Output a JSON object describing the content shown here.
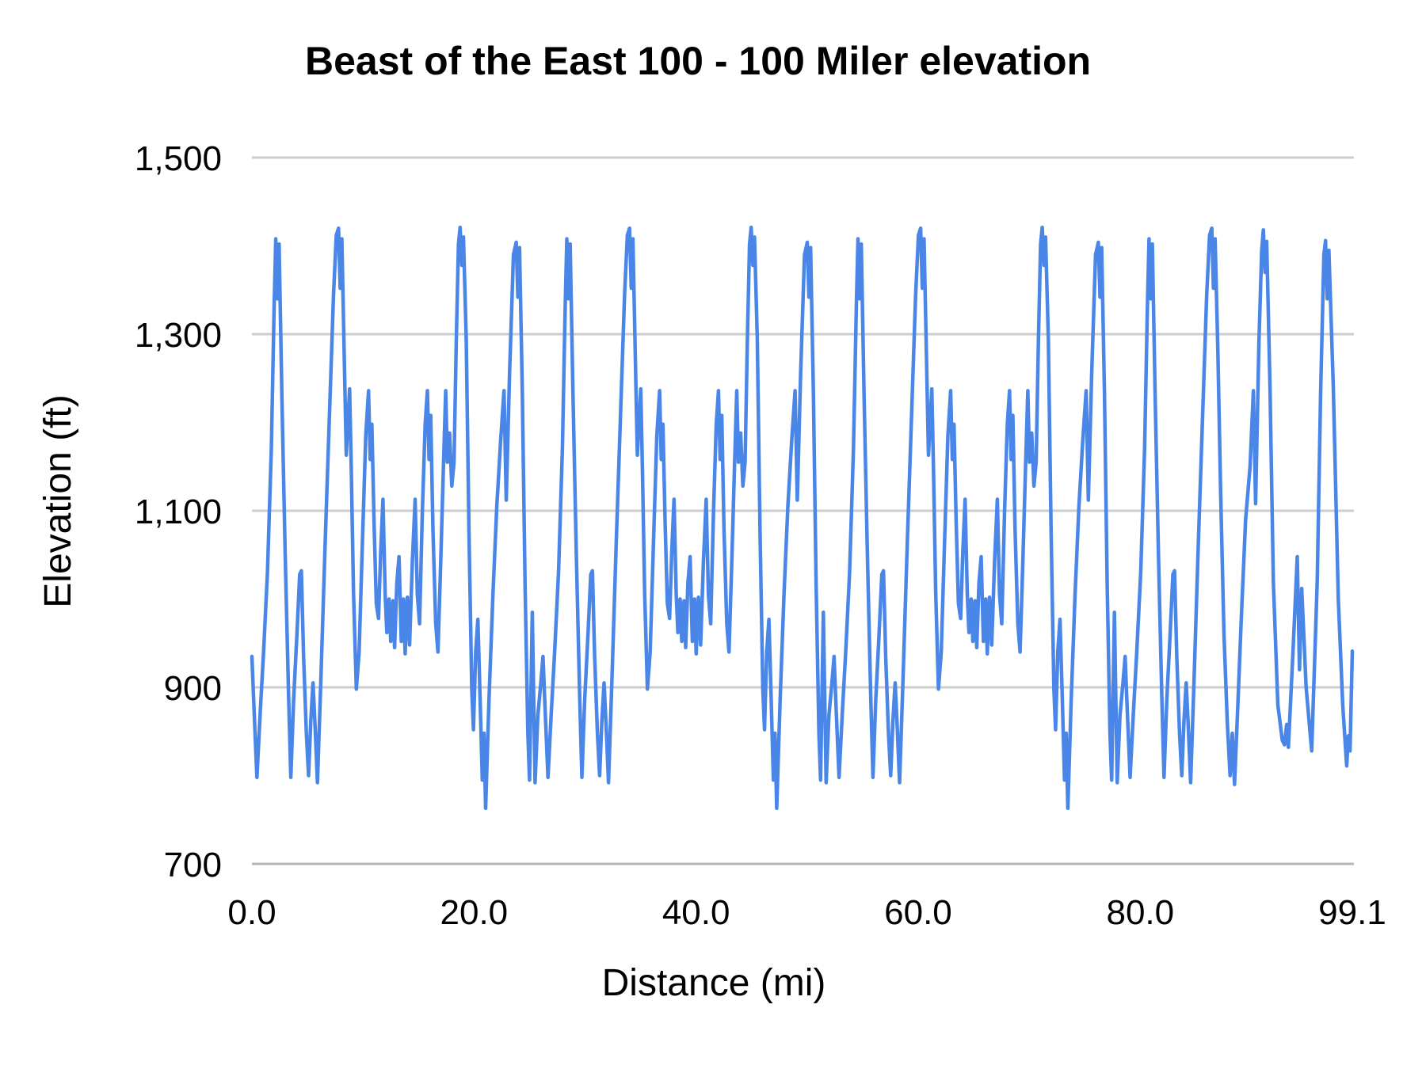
{
  "chart_data": {
    "type": "line",
    "title": "Beast of the East 100 - 100 Miler elevation",
    "xlabel": "Distance (mi)",
    "ylabel": "Elevation (ft)",
    "xlim": [
      0,
      99.1
    ],
    "ylim": [
      700,
      1500
    ],
    "grid": "horizontal",
    "legend": "none",
    "series_name": "Elevation (ft)",
    "series_color": "#4a86e8",
    "gridline_color": "#cccccc",
    "baseline_color": "#b7b7b7",
    "background_color": "#ffffff",
    "x_ticks": [
      {
        "value": 0,
        "label": "0.0"
      },
      {
        "value": 20,
        "label": "20.0"
      },
      {
        "value": 40,
        "label": "40.0"
      },
      {
        "value": 60,
        "label": "60.0"
      },
      {
        "value": 80,
        "label": "80.0"
      },
      {
        "value": 99.1,
        "label": "99.1"
      }
    ],
    "y_ticks": [
      {
        "value": 700,
        "label": "700"
      },
      {
        "value": 900,
        "label": "900"
      },
      {
        "value": 1100,
        "label": "1,100"
      },
      {
        "value": 1300,
        "label": "1,300"
      },
      {
        "value": 1500,
        "label": "1,500"
      }
    ],
    "course_structure": "repeating loop course; elevation profile of 3 full loops followed by a shortened final loop, finish at mile 99.1",
    "loop_length_mi": 26.2133,
    "loop_starts_mi": [
      0,
      26.2133,
      52.4267
    ],
    "loop_profile_points_mi_ft": [
      [
        0.0,
        935
      ],
      [
        0.2,
        872
      ],
      [
        0.45,
        798
      ],
      [
        0.75,
        872
      ],
      [
        1.05,
        940
      ],
      [
        1.4,
        1030
      ],
      [
        1.75,
        1170
      ],
      [
        2.0,
        1330
      ],
      [
        2.15,
        1408
      ],
      [
        2.3,
        1340
      ],
      [
        2.45,
        1402
      ],
      [
        2.7,
        1230
      ],
      [
        3.0,
        1050
      ],
      [
        3.3,
        890
      ],
      [
        3.5,
        798
      ],
      [
        3.75,
        885
      ],
      [
        4.05,
        960
      ],
      [
        4.3,
        1028
      ],
      [
        4.45,
        1032
      ],
      [
        4.65,
        935
      ],
      [
        4.9,
        848
      ],
      [
        5.1,
        800
      ],
      [
        5.3,
        862
      ],
      [
        5.5,
        905
      ],
      [
        5.7,
        852
      ],
      [
        5.9,
        792
      ],
      [
        6.2,
        905
      ],
      [
        6.6,
        1065
      ],
      [
        7.0,
        1215
      ],
      [
        7.35,
        1345
      ],
      [
        7.6,
        1412
      ],
      [
        7.8,
        1420
      ],
      [
        7.95,
        1352
      ],
      [
        8.1,
        1408
      ],
      [
        8.3,
        1285
      ],
      [
        8.5,
        1163
      ],
      [
        8.65,
        1200
      ],
      [
        8.8,
        1238
      ],
      [
        8.95,
        1148
      ],
      [
        9.15,
        1008
      ],
      [
        9.4,
        898
      ],
      [
        9.65,
        940
      ],
      [
        9.95,
        1065
      ],
      [
        10.25,
        1185
      ],
      [
        10.5,
        1236
      ],
      [
        10.65,
        1158
      ],
      [
        10.8,
        1198
      ],
      [
        11.0,
        1085
      ],
      [
        11.2,
        995
      ],
      [
        11.4,
        978
      ],
      [
        11.6,
        1055
      ],
      [
        11.8,
        1113
      ],
      [
        12.0,
        1005
      ],
      [
        12.15,
        962
      ],
      [
        12.35,
        1000
      ],
      [
        12.5,
        952
      ],
      [
        12.7,
        998
      ],
      [
        12.85,
        945
      ],
      [
        13.05,
        1018
      ],
      [
        13.25,
        1048
      ],
      [
        13.45,
        952
      ],
      [
        13.65,
        1000
      ],
      [
        13.8,
        938
      ],
      [
        14.0,
        1002
      ],
      [
        14.2,
        948
      ],
      [
        14.45,
        1042
      ],
      [
        14.7,
        1113
      ],
      [
        14.9,
        1005
      ],
      [
        15.1,
        972
      ],
      [
        15.35,
        1098
      ],
      [
        15.6,
        1198
      ],
      [
        15.8,
        1236
      ],
      [
        15.95,
        1158
      ],
      [
        16.1,
        1208
      ],
      [
        16.3,
        1078
      ],
      [
        16.55,
        972
      ],
      [
        16.75,
        940
      ],
      [
        17.0,
        1042
      ],
      [
        17.25,
        1152
      ],
      [
        17.45,
        1236
      ],
      [
        17.6,
        1155
      ],
      [
        17.8,
        1188
      ],
      [
        18.0,
        1128
      ],
      [
        18.2,
        1155
      ],
      [
        18.4,
        1290
      ],
      [
        18.6,
        1402
      ],
      [
        18.75,
        1421
      ],
      [
        18.9,
        1378
      ],
      [
        19.05,
        1410
      ],
      [
        19.3,
        1295
      ],
      [
        19.55,
        1075
      ],
      [
        19.8,
        898
      ],
      [
        19.95,
        852
      ],
      [
        20.15,
        940
      ],
      [
        20.35,
        977
      ],
      [
        20.55,
        888
      ],
      [
        20.75,
        795
      ],
      [
        20.9,
        848
      ],
      [
        21.05,
        763
      ],
      [
        21.35,
        885
      ],
      [
        21.7,
        1005
      ],
      [
        22.05,
        1105
      ],
      [
        22.4,
        1180
      ],
      [
        22.7,
        1236
      ],
      [
        22.9,
        1112
      ],
      [
        23.2,
        1255
      ],
      [
        23.55,
        1390
      ],
      [
        23.8,
        1404
      ],
      [
        23.95,
        1342
      ],
      [
        24.1,
        1398
      ],
      [
        24.35,
        1235
      ],
      [
        24.6,
        1015
      ],
      [
        24.85,
        848
      ],
      [
        25.0,
        795
      ],
      [
        25.25,
        985
      ],
      [
        25.5,
        792
      ],
      [
        25.75,
        868
      ],
      [
        26.0,
        902
      ]
    ],
    "final_segment_points_mi_ft": [
      [
        78.64,
        935
      ],
      [
        78.84,
        872
      ],
      [
        79.09,
        798
      ],
      [
        79.39,
        872
      ],
      [
        79.69,
        940
      ],
      [
        80.04,
        1030
      ],
      [
        80.39,
        1170
      ],
      [
        80.64,
        1330
      ],
      [
        80.79,
        1408
      ],
      [
        80.94,
        1340
      ],
      [
        81.09,
        1402
      ],
      [
        81.34,
        1230
      ],
      [
        81.64,
        1050
      ],
      [
        81.94,
        890
      ],
      [
        82.14,
        798
      ],
      [
        82.39,
        885
      ],
      [
        82.69,
        960
      ],
      [
        82.94,
        1028
      ],
      [
        83.09,
        1032
      ],
      [
        83.29,
        935
      ],
      [
        83.54,
        848
      ],
      [
        83.74,
        800
      ],
      [
        83.94,
        862
      ],
      [
        84.14,
        905
      ],
      [
        84.34,
        852
      ],
      [
        84.54,
        792
      ],
      [
        84.84,
        905
      ],
      [
        85.24,
        1065
      ],
      [
        85.64,
        1215
      ],
      [
        85.99,
        1345
      ],
      [
        86.24,
        1412
      ],
      [
        86.44,
        1420
      ],
      [
        86.59,
        1352
      ],
      [
        86.74,
        1408
      ],
      [
        86.99,
        1280
      ],
      [
        87.24,
        1120
      ],
      [
        87.54,
        960
      ],
      [
        87.84,
        860
      ],
      [
        88.09,
        800
      ],
      [
        88.29,
        848
      ],
      [
        88.49,
        790
      ],
      [
        88.79,
        880
      ],
      [
        89.09,
        975
      ],
      [
        89.49,
        1090
      ],
      [
        89.89,
        1150
      ],
      [
        90.19,
        1236
      ],
      [
        90.39,
        1108
      ],
      [
        90.69,
        1290
      ],
      [
        90.94,
        1395
      ],
      [
        91.09,
        1418
      ],
      [
        91.24,
        1370
      ],
      [
        91.39,
        1405
      ],
      [
        91.69,
        1240
      ],
      [
        91.99,
        1020
      ],
      [
        92.39,
        880
      ],
      [
        92.79,
        840
      ],
      [
        92.99,
        835
      ],
      [
        93.19,
        858
      ],
      [
        93.34,
        832
      ],
      [
        93.79,
        950
      ],
      [
        94.14,
        1048
      ],
      [
        94.34,
        920
      ],
      [
        94.54,
        1012
      ],
      [
        94.94,
        900
      ],
      [
        95.44,
        828
      ],
      [
        95.94,
        1020
      ],
      [
        96.24,
        1230
      ],
      [
        96.54,
        1390
      ],
      [
        96.69,
        1406
      ],
      [
        96.84,
        1340
      ],
      [
        96.99,
        1395
      ],
      [
        97.39,
        1240
      ],
      [
        97.84,
        1000
      ],
      [
        98.24,
        880
      ],
      [
        98.59,
        811
      ],
      [
        98.74,
        845
      ],
      [
        98.89,
        828
      ],
      [
        99.1,
        941
      ]
    ]
  }
}
